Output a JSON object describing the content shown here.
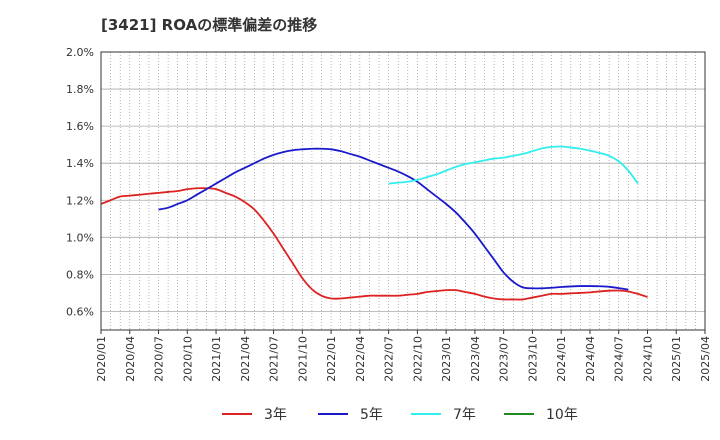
{
  "chart_data": {
    "type": "line",
    "title": "[3421]  ROAの標準偏差の推移",
    "xlabel": "",
    "ylabel": "",
    "ylim": [
      0.5,
      2.0
    ],
    "yticks": [
      0.6,
      0.8,
      1.0,
      1.2,
      1.4,
      1.6,
      1.8,
      2.0
    ],
    "ytick_labels": [
      "0.6%",
      "0.8%",
      "1.0%",
      "1.2%",
      "1.4%",
      "1.6%",
      "1.8%",
      "2.0%"
    ],
    "x_tick_labels": [
      "2020/01",
      "2020/04",
      "2020/07",
      "2020/10",
      "2021/01",
      "2021/04",
      "2021/07",
      "2021/10",
      "2022/01",
      "2022/04",
      "2022/07",
      "2022/10",
      "2023/01",
      "2023/04",
      "2023/07",
      "2023/10",
      "2024/01",
      "2024/04",
      "2024/07",
      "2024/10",
      "2025/01",
      "2025/04"
    ],
    "grid": true,
    "legend_position": "bottom",
    "series": [
      {
        "name": "3年",
        "color": "#dd2222",
        "start_index": 0,
        "values": [
          1.18,
          1.2,
          1.22,
          1.225,
          1.23,
          1.235,
          1.24,
          1.245,
          1.25,
          1.26,
          1.265,
          1.265,
          1.26,
          1.24,
          1.22,
          1.19,
          1.15,
          1.09,
          1.02,
          0.94,
          0.86,
          0.78,
          0.72,
          0.685,
          0.67,
          0.67,
          0.675,
          0.68,
          0.685,
          0.685,
          0.685,
          0.685,
          0.69,
          0.695,
          0.705,
          0.71,
          0.715,
          0.715,
          0.705,
          0.695,
          0.68,
          0.67,
          0.665,
          0.665,
          0.665,
          0.675,
          0.685,
          0.695,
          0.695,
          0.698,
          0.7,
          0.703,
          0.708,
          0.712,
          0.713,
          0.708,
          0.695,
          0.678
        ]
      },
      {
        "name": "5年",
        "color": "#1a1acc",
        "start_index": 6,
        "values": [
          1.15,
          1.16,
          1.18,
          1.2,
          1.23,
          1.26,
          1.29,
          1.32,
          1.35,
          1.375,
          1.4,
          1.425,
          1.445,
          1.46,
          1.47,
          1.475,
          1.478,
          1.478,
          1.475,
          1.465,
          1.45,
          1.435,
          1.415,
          1.395,
          1.375,
          1.355,
          1.33,
          1.3,
          1.26,
          1.22,
          1.18,
          1.135,
          1.08,
          1.02,
          0.95,
          0.88,
          0.81,
          0.76,
          0.73,
          0.725,
          0.725,
          0.728,
          0.732,
          0.735,
          0.737,
          0.737,
          0.736,
          0.733,
          0.726,
          0.718
        ]
      },
      {
        "name": "7年",
        "color": "#33eeee",
        "start_index": 30,
        "values": [
          1.29,
          1.295,
          1.3,
          1.31,
          1.325,
          1.34,
          1.36,
          1.38,
          1.395,
          1.405,
          1.415,
          1.425,
          1.43,
          1.44,
          1.45,
          1.465,
          1.48,
          1.488,
          1.49,
          1.485,
          1.478,
          1.468,
          1.455,
          1.44,
          1.41,
          1.36,
          1.29
        ]
      },
      {
        "name": "10年",
        "color": "#228822",
        "start_index": 0,
        "values": []
      }
    ]
  }
}
